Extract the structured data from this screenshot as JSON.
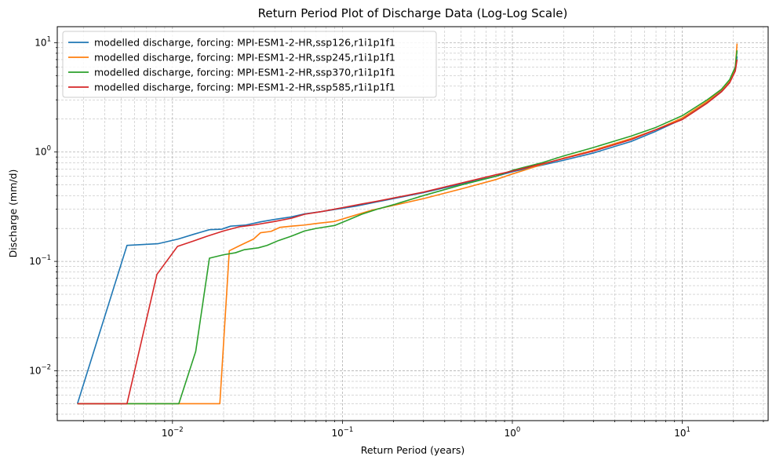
{
  "chart_data": {
    "type": "line",
    "title": "Return Period Plot of Discharge Data (Log-Log Scale)",
    "xlabel": "Return Period (years)",
    "ylabel": "Discharge (mm/d)",
    "xscale": "log",
    "yscale": "log",
    "xlim": [
      0.0021,
      32
    ],
    "ylim": [
      0.0035,
      14
    ],
    "x_ticks": [
      {
        "value": 0.01,
        "base": "10",
        "exp": "−2"
      },
      {
        "value": 0.1,
        "base": "10",
        "exp": "−1"
      },
      {
        "value": 1,
        "base": "10",
        "exp": "0"
      },
      {
        "value": 10,
        "base": "10",
        "exp": "1"
      }
    ],
    "y_ticks": [
      {
        "value": 0.01,
        "base": "10",
        "exp": "−2"
      },
      {
        "value": 0.1,
        "base": "10",
        "exp": "−1"
      },
      {
        "value": 1,
        "base": "10",
        "exp": "0"
      },
      {
        "value": 10,
        "base": "10",
        "exp": "1"
      }
    ],
    "grid": "major and minor, dashed",
    "legend_position": "top-left",
    "series": [
      {
        "name": "modelled discharge, forcing: MPI-ESM1-2-HR,ssp126,r1i1p1f1",
        "color": "#1f77b4",
        "points": [
          [
            0.00276,
            0.005
          ],
          [
            0.0054,
            0.14
          ],
          [
            0.0082,
            0.145
          ],
          [
            0.0108,
            0.16
          ],
          [
            0.0135,
            0.178
          ],
          [
            0.0165,
            0.195
          ],
          [
            0.0195,
            0.197
          ],
          [
            0.022,
            0.21
          ],
          [
            0.027,
            0.215
          ],
          [
            0.033,
            0.23
          ],
          [
            0.04,
            0.242
          ],
          [
            0.05,
            0.255
          ],
          [
            0.06,
            0.272
          ],
          [
            0.075,
            0.285
          ],
          [
            0.09,
            0.298
          ],
          [
            0.12,
            0.32
          ],
          [
            0.16,
            0.35
          ],
          [
            0.2,
            0.375
          ],
          [
            0.3,
            0.425
          ],
          [
            0.5,
            0.51
          ],
          [
            0.8,
            0.6
          ],
          [
            1.0,
            0.66
          ],
          [
            1.5,
            0.76
          ],
          [
            2.0,
            0.84
          ],
          [
            3.0,
            0.98
          ],
          [
            5.0,
            1.25
          ],
          [
            7.0,
            1.55
          ],
          [
            10.0,
            2.0
          ],
          [
            14.0,
            2.85
          ],
          [
            17.0,
            3.6
          ],
          [
            19.0,
            4.4
          ],
          [
            20.5,
            5.6
          ],
          [
            21.0,
            7.5
          ]
        ]
      },
      {
        "name": "modelled discharge, forcing: MPI-ESM1-2-HR,ssp245,r1i1p1f1",
        "color": "#ff7f0e",
        "points": [
          [
            0.00276,
            0.005
          ],
          [
            0.019,
            0.005
          ],
          [
            0.0216,
            0.125
          ],
          [
            0.025,
            0.14
          ],
          [
            0.03,
            0.16
          ],
          [
            0.033,
            0.183
          ],
          [
            0.038,
            0.188
          ],
          [
            0.043,
            0.205
          ],
          [
            0.05,
            0.21
          ],
          [
            0.06,
            0.215
          ],
          [
            0.07,
            0.222
          ],
          [
            0.09,
            0.232
          ],
          [
            0.11,
            0.255
          ],
          [
            0.15,
            0.295
          ],
          [
            0.2,
            0.325
          ],
          [
            0.3,
            0.375
          ],
          [
            0.5,
            0.46
          ],
          [
            0.8,
            0.56
          ],
          [
            1.0,
            0.63
          ],
          [
            1.5,
            0.77
          ],
          [
            2.0,
            0.88
          ],
          [
            3.0,
            1.04
          ],
          [
            5.0,
            1.33
          ],
          [
            7.0,
            1.6
          ],
          [
            10.0,
            2.05
          ],
          [
            14.0,
            2.9
          ],
          [
            17.0,
            3.7
          ],
          [
            19.0,
            4.5
          ],
          [
            20.5,
            5.9
          ],
          [
            21.0,
            9.8
          ]
        ]
      },
      {
        "name": "modelled discharge, forcing: MPI-ESM1-2-HR,ssp370,r1i1p1f1",
        "color": "#2ca02c",
        "points": [
          [
            0.00276,
            0.005
          ],
          [
            0.0109,
            0.005
          ],
          [
            0.0137,
            0.015
          ],
          [
            0.0165,
            0.107
          ],
          [
            0.02,
            0.115
          ],
          [
            0.0235,
            0.12
          ],
          [
            0.0265,
            0.128
          ],
          [
            0.032,
            0.133
          ],
          [
            0.036,
            0.14
          ],
          [
            0.042,
            0.155
          ],
          [
            0.05,
            0.17
          ],
          [
            0.06,
            0.19
          ],
          [
            0.07,
            0.2
          ],
          [
            0.09,
            0.213
          ],
          [
            0.11,
            0.242
          ],
          [
            0.13,
            0.27
          ],
          [
            0.16,
            0.3
          ],
          [
            0.2,
            0.33
          ],
          [
            0.3,
            0.4
          ],
          [
            0.5,
            0.5
          ],
          [
            0.8,
            0.6
          ],
          [
            1.0,
            0.68
          ],
          [
            1.5,
            0.8
          ],
          [
            2.0,
            0.92
          ],
          [
            3.0,
            1.1
          ],
          [
            5.0,
            1.4
          ],
          [
            7.0,
            1.68
          ],
          [
            10.0,
            2.15
          ],
          [
            14.0,
            3.0
          ],
          [
            17.0,
            3.75
          ],
          [
            19.0,
            4.6
          ],
          [
            20.5,
            6.0
          ],
          [
            21.0,
            8.5
          ]
        ]
      },
      {
        "name": "modelled discharge, forcing: MPI-ESM1-2-HR,ssp585,r1i1p1f1",
        "color": "#d62728",
        "points": [
          [
            0.00276,
            0.005
          ],
          [
            0.0054,
            0.005
          ],
          [
            0.0081,
            0.076
          ],
          [
            0.0107,
            0.137
          ],
          [
            0.0135,
            0.155
          ],
          [
            0.016,
            0.17
          ],
          [
            0.02,
            0.19
          ],
          [
            0.025,
            0.208
          ],
          [
            0.03,
            0.215
          ],
          [
            0.04,
            0.232
          ],
          [
            0.05,
            0.248
          ],
          [
            0.06,
            0.27
          ],
          [
            0.075,
            0.285
          ],
          [
            0.1,
            0.31
          ],
          [
            0.13,
            0.335
          ],
          [
            0.16,
            0.355
          ],
          [
            0.2,
            0.38
          ],
          [
            0.3,
            0.43
          ],
          [
            0.5,
            0.52
          ],
          [
            0.8,
            0.62
          ],
          [
            1.0,
            0.67
          ],
          [
            1.5,
            0.78
          ],
          [
            2.0,
            0.87
          ],
          [
            3.0,
            1.02
          ],
          [
            5.0,
            1.3
          ],
          [
            7.0,
            1.6
          ],
          [
            10.0,
            1.98
          ],
          [
            14.0,
            2.8
          ],
          [
            17.0,
            3.55
          ],
          [
            19.0,
            4.3
          ],
          [
            20.5,
            5.5
          ],
          [
            21.0,
            7.0
          ]
        ]
      }
    ]
  }
}
